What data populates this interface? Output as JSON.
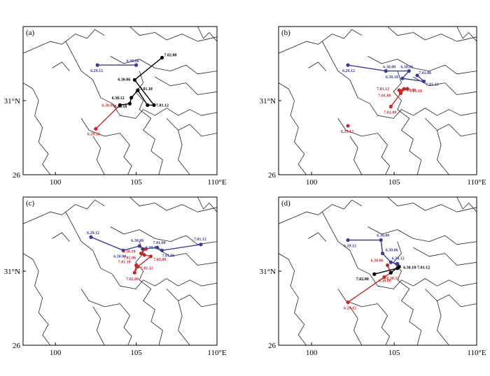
{
  "domain": "Map",
  "panels": [
    {
      "label": "(a)",
      "tracks": [
        {
          "color": "#3c3c96",
          "points": [
            {
              "lon": 102.6,
              "lat": 33.4,
              "label": "6.29.12",
              "dx": -10,
              "dy": 10
            },
            {
              "lon": 105.0,
              "lat": 33.4,
              "label": "6.30.00",
              "dx": -14,
              "dy": -4
            }
          ]
        },
        {
          "color": "#c82828",
          "points": [
            {
              "lon": 102.5,
              "lat": 29.1,
              "label": "6.29.12",
              "dx": -12,
              "dy": 9
            },
            {
              "lon": 104.0,
              "lat": 30.7,
              "label": "6.30.00",
              "dx": -26,
              "dy": 2
            }
          ]
        },
        {
          "color": "#000000",
          "points": [
            {
              "lon": 104.0,
              "lat": 30.7,
              "label": "",
              "dx": 0,
              "dy": 0
            },
            {
              "lon": 104.6,
              "lat": 30.8,
              "label": "6.30.18",
              "dx": -22,
              "dy": 6
            },
            {
              "lon": 104.7,
              "lat": 31.2,
              "label": "6.30.12",
              "dx": -28,
              "dy": 2
            },
            {
              "lon": 105.1,
              "lat": 31.7,
              "label": "7.01.18",
              "dx": 3,
              "dy": 0
            },
            {
              "lon": 105.7,
              "lat": 30.7,
              "label": "",
              "dx": 0,
              "dy": 0
            },
            {
              "lon": 106.1,
              "lat": 30.7,
              "label": "7.01.12",
              "dx": 3,
              "dy": 2
            },
            {
              "lon": 104.9,
              "lat": 32.4,
              "label": "6.30.06",
              "dx": -24,
              "dy": 1
            },
            {
              "lon": 106.6,
              "lat": 33.9,
              "label": "7.02.00",
              "dx": 3,
              "dy": -2
            }
          ]
        }
      ]
    },
    {
      "label": "(b)",
      "tracks": [
        {
          "color": "#3c3c96",
          "points": [
            {
              "lon": 102.2,
              "lat": 33.4,
              "label": "6.29.12",
              "dx": -8,
              "dy": 10
            },
            {
              "lon": 104.5,
              "lat": 33.0,
              "label": "6.30.00",
              "dx": -4,
              "dy": -4
            },
            {
              "lon": 105.9,
              "lat": 33.0,
              "label": "6.30.06",
              "dx": -12,
              "dy": -4
            },
            {
              "lon": 105.5,
              "lat": 32.5,
              "label": "6.30.18",
              "dx": -24,
              "dy": 0
            },
            {
              "lon": 106.8,
              "lat": 32.3,
              "label": "7.01.12",
              "dx": 3,
              "dy": 6
            },
            {
              "lon": 106.4,
              "lat": 32.7,
              "label": "7.01.06",
              "dx": 2,
              "dy": -2
            }
          ]
        },
        {
          "color": "#c82828",
          "points": [
            {
              "lon": 105.8,
              "lat": 31.8,
              "label": "7.01.18",
              "dx": 3,
              "dy": 5
            },
            {
              "lon": 105.4,
              "lat": 31.6,
              "label": "7.01.06",
              "dx": 4,
              "dy": -1
            },
            {
              "lon": 105.6,
              "lat": 31.8,
              "label": "",
              "dx": 0,
              "dy": 0
            },
            {
              "lon": 105.3,
              "lat": 31.7,
              "label": "7.01.12",
              "dx": -32,
              "dy": 0
            },
            {
              "lon": 105.4,
              "lat": 31.5,
              "label": "7.01.00",
              "dx": -32,
              "dy": 5
            },
            {
              "lon": 104.8,
              "lat": 30.6,
              "label": "7.02.00",
              "dx": -10,
              "dy": 10
            }
          ]
        },
        {
          "color": "#c82828",
          "points": [
            {
              "lon": 102.2,
              "lat": 29.3,
              "label": "6.29.12",
              "dx": -10,
              "dy": 10
            }
          ]
        }
      ]
    },
    {
      "label": "(c)",
      "tracks": [
        {
          "color": "#3c3c96",
          "points": [
            {
              "lon": 102.2,
              "lat": 33.3,
              "label": "6.29.12",
              "dx": -6,
              "dy": -4
            },
            {
              "lon": 104.2,
              "lat": 32.4,
              "label": "6.30.00",
              "dx": -14,
              "dy": 10
            },
            {
              "lon": 105.2,
              "lat": 32.7,
              "label": "6.30.06",
              "dx": -12,
              "dy": -6
            },
            {
              "lon": 105.4,
              "lat": 32.5,
              "label": "6.30.12",
              "dx": 4,
              "dy": 0
            },
            {
              "lon": 106.3,
              "lat": 32.6,
              "label": "7.01.00",
              "dx": -6,
              "dy": -5
            },
            {
              "lon": 106.6,
              "lat": 32.4,
              "label": "7.01.06",
              "dx": 0,
              "dy": 9
            },
            {
              "lon": 109.0,
              "lat": 32.8,
              "label": "7.01.12",
              "dx": -10,
              "dy": -6
            }
          ]
        },
        {
          "color": "#c82828",
          "points": [
            {
              "lon": 105.6,
              "lat": 32.5,
              "label": "",
              "dx": 0,
              "dy": 0
            },
            {
              "lon": 105.3,
              "lat": 32.2,
              "label": "6.30.18",
              "dx": -26,
              "dy": -1
            },
            {
              "lon": 105.5,
              "lat": 32.1,
              "label": "7.01.06",
              "dx": -30,
              "dy": 6
            },
            {
              "lon": 105.9,
              "lat": 32.0,
              "label": "7.01.00",
              "dx": 4,
              "dy": 6
            },
            {
              "lon": 105.1,
              "lat": 31.3,
              "label": "7.01.12",
              "dx": 4,
              "dy": 4
            },
            {
              "lon": 104.9,
              "lat": 30.9,
              "label": "7.02.00",
              "dx": -12,
              "dy": 11
            },
            {
              "lon": 105.0,
              "lat": 31.4,
              "label": "7.01.18",
              "dx": -26,
              "dy": -3
            }
          ]
        }
      ]
    },
    {
      "label": "(d)",
      "tracks": [
        {
          "color": "#3c3c96",
          "points": [
            {
              "lon": 102.2,
              "lat": 33.1,
              "label": "6.29.12",
              "dx": -6,
              "dy": 10
            },
            {
              "lon": 104.2,
              "lat": 33.1,
              "label": "6.30.00",
              "dx": -6,
              "dy": -5
            },
            {
              "lon": 104.3,
              "lat": 32.2,
              "label": "6.30.06",
              "dx": 4,
              "dy": -3
            },
            {
              "lon": 104.8,
              "lat": 31.6,
              "label": "",
              "dx": 0,
              "dy": 0
            },
            {
              "lon": 105.2,
              "lat": 31.5,
              "label": "6.30.12",
              "dx": -8,
              "dy": -6
            }
          ]
        },
        {
          "color": "#c82828",
          "points": [
            {
              "lon": 102.2,
              "lat": 28.9,
              "label": "6.29.12",
              "dx": -6,
              "dy": 10
            },
            {
              "lon": 104.4,
              "lat": 30.6,
              "label": "6.30.00",
              "dx": -8,
              "dy": 7
            },
            {
              "lon": 104.8,
              "lat": 30.9,
              "label": "6.30.12",
              "dx": -6,
              "dy": 10
            },
            {
              "lon": 104.6,
              "lat": 31.4,
              "label": "6.30.06",
              "dx": -24,
              "dy": -5
            }
          ]
        },
        {
          "color": "#000000",
          "points": [
            {
              "lon": 104.8,
              "lat": 30.9,
              "label": "",
              "dx": 0,
              "dy": 0
            },
            {
              "lon": 105.3,
              "lat": 31.3,
              "label": "6.30.18-7.01.12",
              "dx": 6,
              "dy": 3
            },
            {
              "lon": 105.2,
              "lat": 31.2,
              "label": "",
              "dx": 0,
              "dy": 0
            },
            {
              "lon": 103.8,
              "lat": 30.8,
              "label": "7.02.00",
              "dx": -26,
              "dy": 9
            }
          ]
        }
      ]
    }
  ],
  "axes": {
    "x_ticks": [
      {
        "value": 100,
        "label": "100"
      },
      {
        "value": 105,
        "label": "105"
      },
      {
        "value": 110,
        "label": "110°E"
      }
    ],
    "y_ticks": [
      {
        "value": 26,
        "label": "26"
      },
      {
        "value": 31,
        "label": "31°N"
      }
    ],
    "xlim": [
      98,
      110
    ],
    "ylim": [
      26,
      36
    ]
  }
}
